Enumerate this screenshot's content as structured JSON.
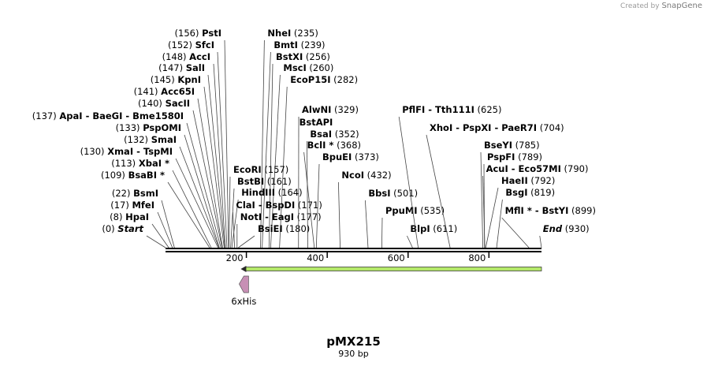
{
  "watermark": {
    "prefix": "Created by",
    "brand": "SnapGene"
  },
  "plasmid": {
    "name": "pMX215",
    "length_label": "930 bp",
    "length_bp": 930
  },
  "ruler": {
    "ticks": [
      "200",
      "400",
      "600",
      "800"
    ]
  },
  "features": [
    {
      "name": "6xHis",
      "type": "arrow",
      "direction": "left",
      "start_bp": 186,
      "end_bp": 205,
      "color": "#c78fb5"
    },
    {
      "name": "",
      "type": "arrow",
      "direction": "left",
      "start_bp": 186,
      "end_bp": 930,
      "color": "#b4e86a"
    }
  ],
  "sites": [
    {
      "name": "Start",
      "pos_label": "(0)",
      "bp": 0,
      "italic": true
    },
    {
      "name": "HpaI",
      "pos_label": "(8)",
      "bp": 8
    },
    {
      "name": "MfeI",
      "pos_label": "(17)",
      "bp": 17
    },
    {
      "name": "BsmI",
      "pos_label": "(22)",
      "bp": 22
    },
    {
      "name": "BsaBI *",
      "pos_label": "(109)",
      "bp": 109
    },
    {
      "name": "XbaI *",
      "pos_label": "(113)",
      "bp": 113
    },
    {
      "name": "XmaI  -  TspMI",
      "pos_label": "(130)",
      "bp": 130
    },
    {
      "name": "SmaI",
      "pos_label": "(132)",
      "bp": 132
    },
    {
      "name": "PspOMI",
      "pos_label": "(133)",
      "bp": 133
    },
    {
      "name": "ApaI  -  BaeGI  -  Bme1580I",
      "pos_label": "(137)",
      "bp": 137
    },
    {
      "name": "SacII",
      "pos_label": "(140)",
      "bp": 140
    },
    {
      "name": "Acc65I",
      "pos_label": "(141)",
      "bp": 141
    },
    {
      "name": "KpnI",
      "pos_label": "(145)",
      "bp": 145
    },
    {
      "name": "SalI",
      "pos_label": "(147)",
      "bp": 147
    },
    {
      "name": "AccI",
      "pos_label": "(148)",
      "bp": 148
    },
    {
      "name": "SfcI",
      "pos_label": "(152)",
      "bp": 152
    },
    {
      "name": "PstI",
      "pos_label": "(156)",
      "bp": 156
    },
    {
      "name": "NheI",
      "pos_label": "(235)",
      "bp": 235
    },
    {
      "name": "BmtI",
      "pos_label": "(239)",
      "bp": 239
    },
    {
      "name": "BstXI",
      "pos_label": "(256)",
      "bp": 256
    },
    {
      "name": "MscI",
      "pos_label": "(260)",
      "bp": 260
    },
    {
      "name": "EcoP15I",
      "pos_label": "(282)",
      "bp": 282
    },
    {
      "name": "EcoRI",
      "pos_label": "(157)",
      "bp": 157
    },
    {
      "name": "BstBI",
      "pos_label": "(161)",
      "bp": 161
    },
    {
      "name": "HindIII",
      "pos_label": "(164)",
      "bp": 164
    },
    {
      "name": "ClaI  -  BspDI",
      "pos_label": "(171)",
      "bp": 171
    },
    {
      "name": "NotI  -  EagI",
      "pos_label": "(177)",
      "bp": 177
    },
    {
      "name": "BsiEI",
      "pos_label": "(180)",
      "bp": 180
    },
    {
      "name": "AlwNI",
      "pos_label": "(329)",
      "bp": 329
    },
    {
      "name": "BstAPI",
      "pos_label": "",
      "bp": 329
    },
    {
      "name": "BsaI",
      "pos_label": "(352)",
      "bp": 352
    },
    {
      "name": "BclI *",
      "pos_label": "(368)",
      "bp": 368
    },
    {
      "name": "BpuEI",
      "pos_label": "(373)",
      "bp": 373
    },
    {
      "name": "NcoI",
      "pos_label": "(432)",
      "bp": 432
    },
    {
      "name": "BbsI",
      "pos_label": "(501)",
      "bp": 501
    },
    {
      "name": "PpuMI",
      "pos_label": "(535)",
      "bp": 535
    },
    {
      "name": "BlpI",
      "pos_label": "(611)",
      "bp": 611
    },
    {
      "name": "PflFI  -  Tth111I",
      "pos_label": "(625)",
      "bp": 625
    },
    {
      "name": "XhoI  -  PspXI  -  PaeR7I",
      "pos_label": "(704)",
      "bp": 704
    },
    {
      "name": "BseYI",
      "pos_label": "(785)",
      "bp": 785
    },
    {
      "name": "PspFI",
      "pos_label": "(789)",
      "bp": 789
    },
    {
      "name": "AcuI  -  Eco57MI",
      "pos_label": "(790)",
      "bp": 790
    },
    {
      "name": "HaeII",
      "pos_label": "(792)",
      "bp": 792
    },
    {
      "name": "BsgI",
      "pos_label": "(819)",
      "bp": 819
    },
    {
      "name": "MflI *  -  BstYI",
      "pos_label": "(899)",
      "bp": 899
    },
    {
      "name": "End",
      "pos_label": "(930)",
      "bp": 930,
      "italic": true
    }
  ]
}
